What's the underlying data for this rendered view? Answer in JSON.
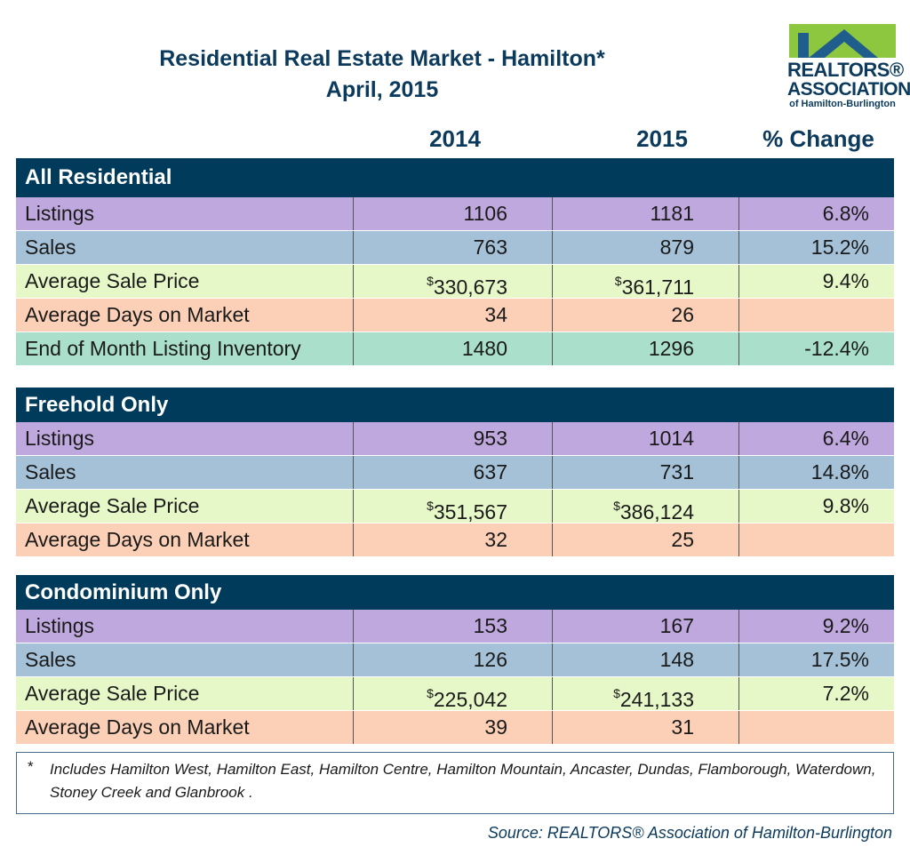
{
  "title": {
    "line1": "Residential Real Estate Market - Hamilton*",
    "line2": "April, 2015"
  },
  "logo": {
    "line1": "REALTORS®",
    "line2": "ASSOCIATION",
    "line3": "of Hamilton-Burlington"
  },
  "columns": {
    "y2014": "2014",
    "y2015": "2015",
    "change": "% Change"
  },
  "colors": {
    "header": "#003b5c",
    "listings": "#bfa8de",
    "sales": "#a4c1d8",
    "avg_price": "#e7f8c8",
    "avg_days": "#fbd0b6",
    "inventory": "#a9dfcb"
  },
  "chart_data": {
    "type": "table",
    "title": "Residential Real Estate Market - Hamilton*",
    "subtitle": "April, 2015",
    "columns": [
      "2014",
      "2015",
      "% Change"
    ],
    "sections": [
      {
        "name": "All Residential",
        "rows": [
          {
            "label": "Listings",
            "v2014": "1106",
            "v2015": "1181",
            "change": "6.8%",
            "kind": "listings"
          },
          {
            "label": "Sales",
            "v2014": "763",
            "v2015": "879",
            "change": "15.2%",
            "kind": "sales"
          },
          {
            "label": "Average Sale Price",
            "v2014": "330,673",
            "v2015": "361,711",
            "change": "9.4%",
            "kind": "avg_price",
            "currency": "$"
          },
          {
            "label": "Average Days on Market",
            "v2014": "34",
            "v2015": "26",
            "change": "",
            "kind": "avg_days"
          },
          {
            "label": "End of Month Listing Inventory",
            "v2014": "1480",
            "v2015": "1296",
            "change": "-12.4%",
            "kind": "inventory"
          }
        ]
      },
      {
        "name": "Freehold Only",
        "rows": [
          {
            "label": "Listings",
            "v2014": "953",
            "v2015": "1014",
            "change": "6.4%",
            "kind": "listings"
          },
          {
            "label": "Sales",
            "v2014": "637",
            "v2015": "731",
            "change": "14.8%",
            "kind": "sales"
          },
          {
            "label": "Average Sale Price",
            "v2014": "351,567",
            "v2015": "386,124",
            "change": "9.8%",
            "kind": "avg_price",
            "currency": "$"
          },
          {
            "label": "Average Days on Market",
            "v2014": "32",
            "v2015": "25",
            "change": "",
            "kind": "avg_days"
          }
        ]
      },
      {
        "name": "Condominium Only",
        "rows": [
          {
            "label": "Listings",
            "v2014": "153",
            "v2015": "167",
            "change": "9.2%",
            "kind": "listings"
          },
          {
            "label": "Sales",
            "v2014": "126",
            "v2015": "148",
            "change": "17.5%",
            "kind": "sales"
          },
          {
            "label": "Average Sale Price",
            "v2014": "225,042",
            "v2015": "241,133",
            "change": "7.2%",
            "kind": "avg_price",
            "currency": "$"
          },
          {
            "label": "Average Days on Market",
            "v2014": "39",
            "v2015": "31",
            "change": "",
            "kind": "avg_days"
          }
        ]
      }
    ]
  },
  "footnote": {
    "marker": "*",
    "text": "Includes Hamilton West, Hamilton East, Hamilton Centre, Hamilton Mountain, Ancaster, Dundas, Flamborough, Waterdown, Stoney Creek and Glanbrook ."
  },
  "source": "Source:  REALTORS® Association of Hamilton-Burlington"
}
